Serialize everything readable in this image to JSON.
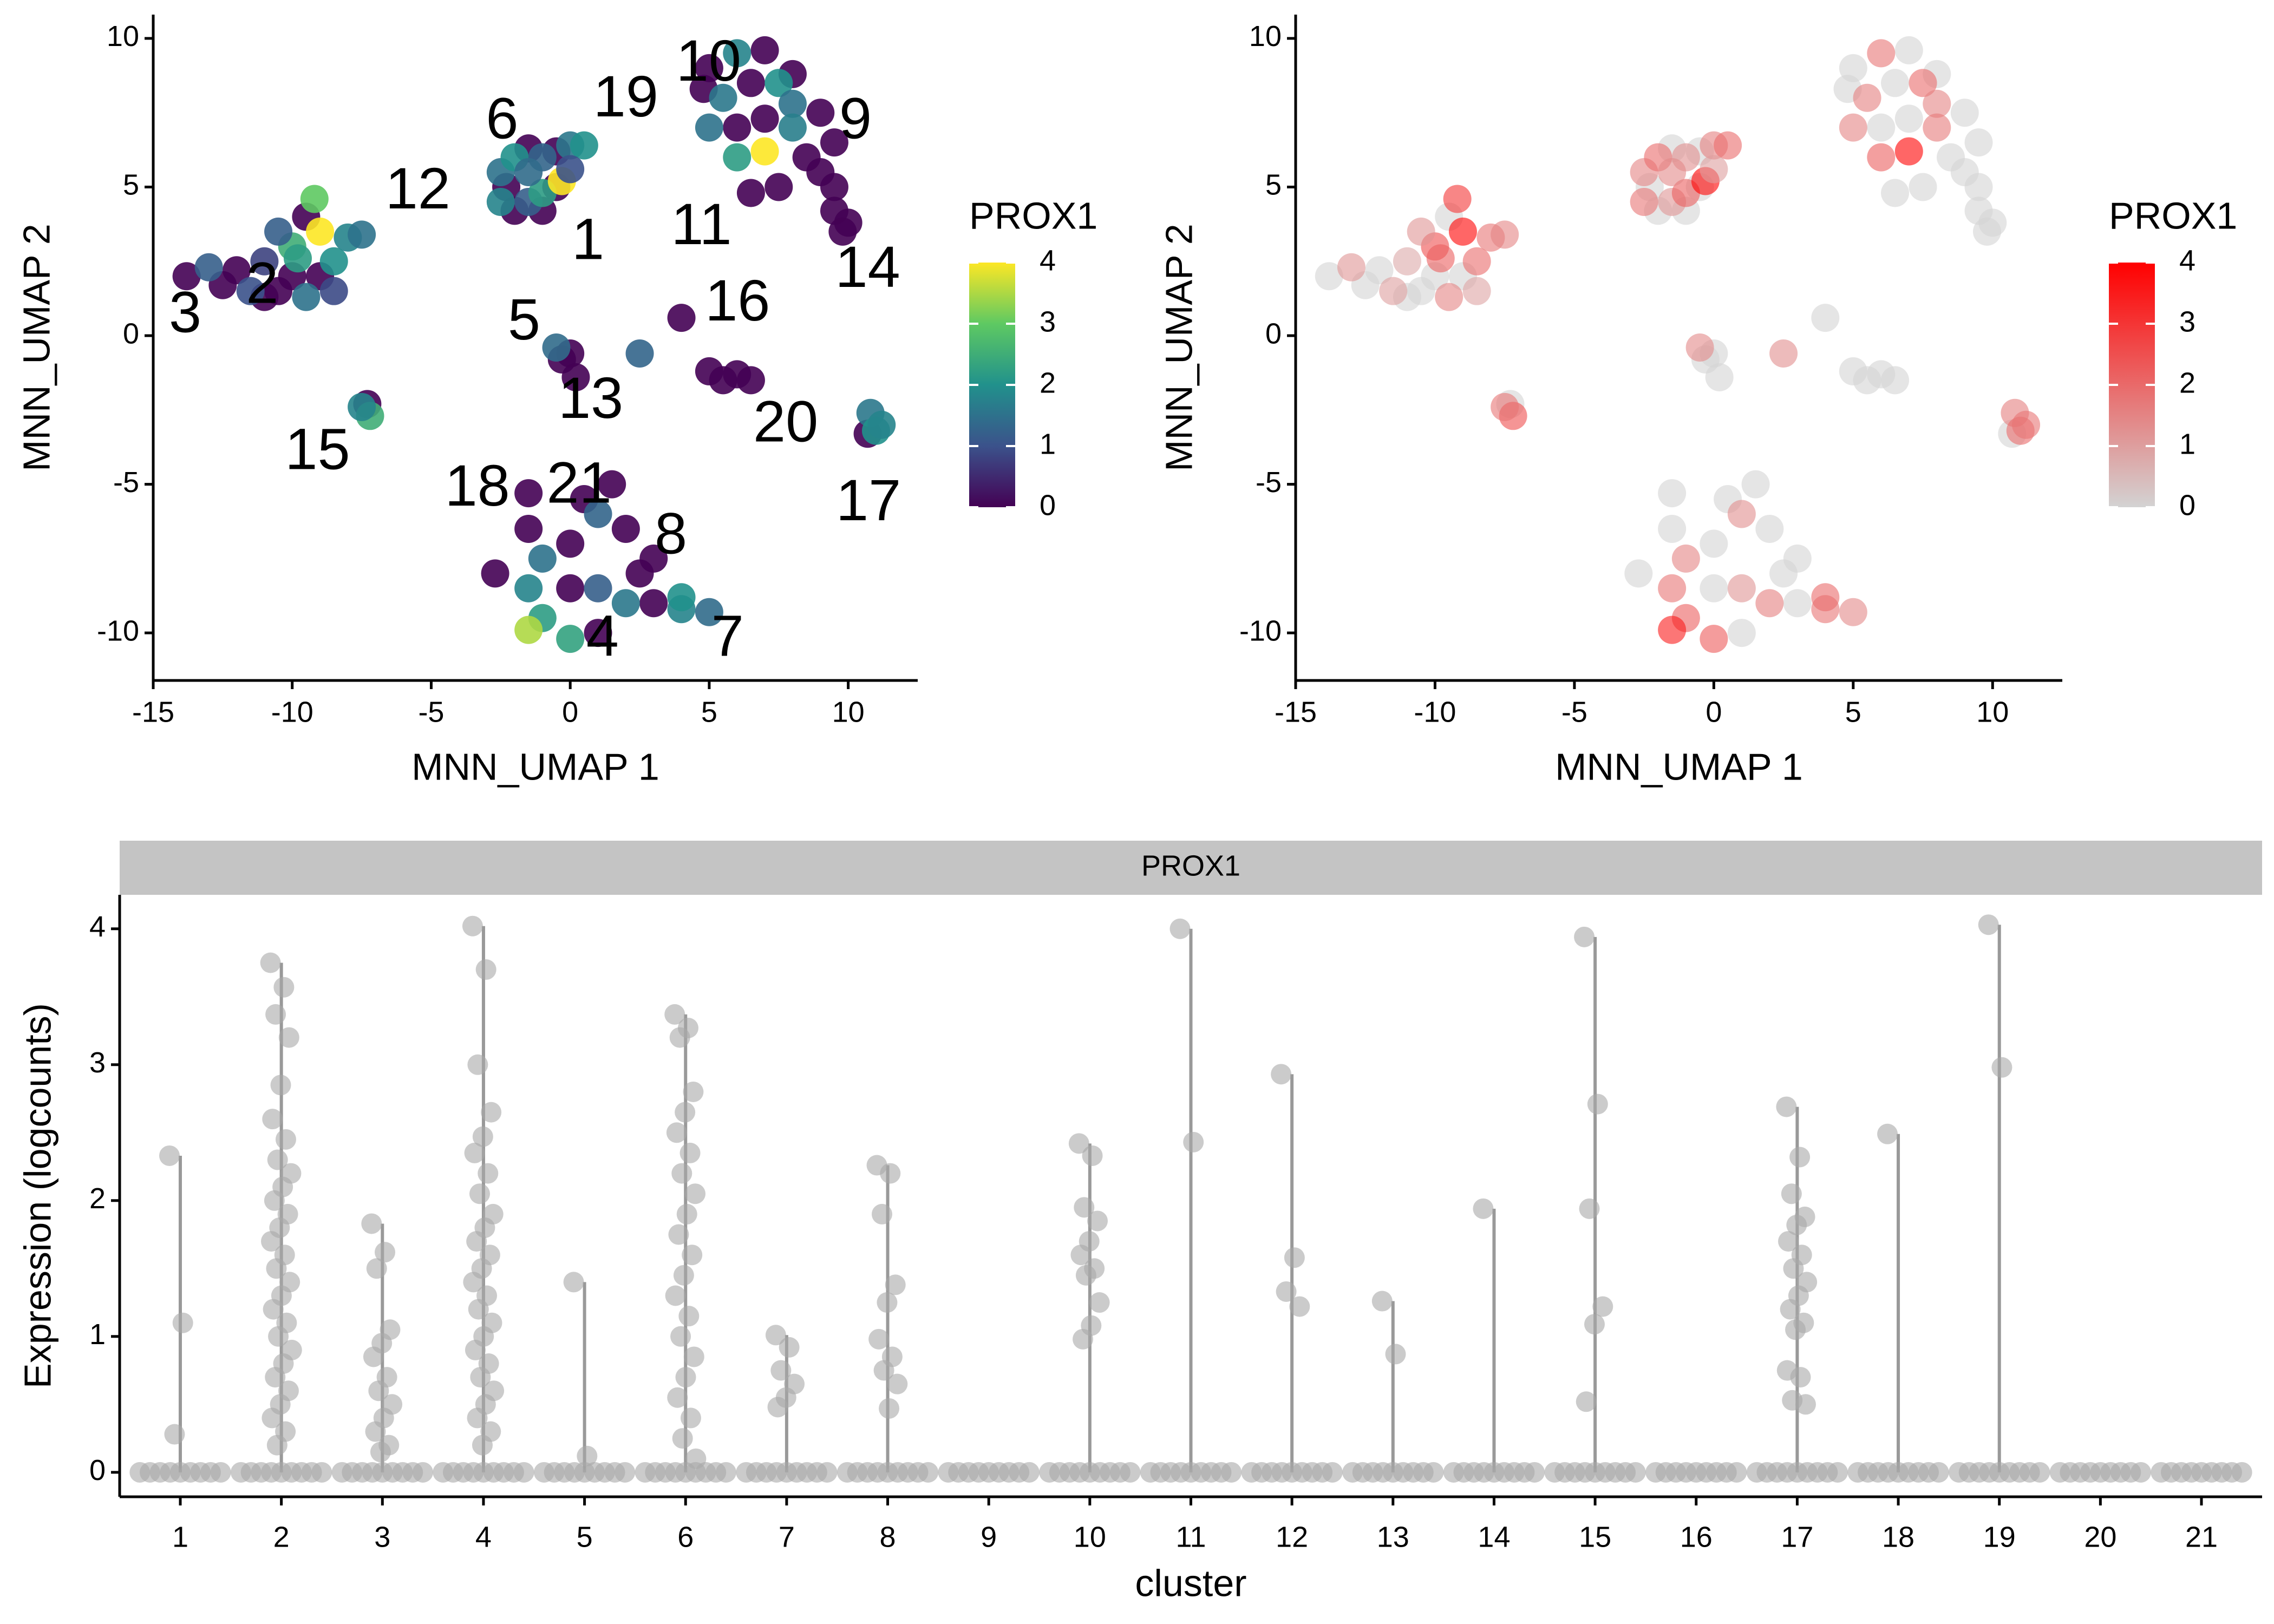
{
  "chart_data": [
    {
      "type": "scatter",
      "x_label": "MNN_UMAP 1",
      "y_label": "MNN_UMAP 2",
      "xlim": [
        -15,
        12.5
      ],
      "ylim": [
        -11.6,
        10.8
      ],
      "xticks": [
        -15,
        -10,
        -5,
        0,
        5,
        10
      ],
      "yticks": [
        -10,
        -5,
        0,
        5,
        10
      ],
      "x": [
        -13.8,
        -13,
        -12,
        -11,
        -12.5,
        -11.5,
        -10.5,
        -10,
        -9.5,
        -9,
        -8.5,
        -10,
        -9.5,
        -9,
        -8,
        -7.5,
        -10.5,
        -9.2,
        -11,
        -8.5,
        -9.8,
        -7.3,
        -7.2,
        -7.5,
        -2.5,
        -2,
        -1.5,
        -1,
        -0.5,
        0,
        0.5,
        -2.5,
        -2,
        -1.5,
        -1,
        -0.5,
        -1.5,
        -2.3,
        -0.3,
        -1,
        0,
        5,
        6,
        7,
        5.5,
        6.5,
        7.5,
        8,
        9,
        9.5,
        8.5,
        7,
        6,
        5,
        6,
        7,
        8,
        9,
        7.5,
        6.5,
        9.5,
        4.8,
        8,
        9.5,
        10,
        9.8,
        -0.5,
        0,
        -0.3,
        0.2,
        2.5,
        4,
        5,
        5.5,
        6,
        6.5,
        10.8,
        11,
        11.2,
        10.7,
        -2.7,
        -1.5,
        -1.5,
        -1,
        0,
        1,
        1.5,
        2,
        3,
        -1.5,
        -1,
        0,
        0,
        1,
        2,
        3,
        4,
        5,
        1,
        -1.5,
        0.5,
        2.5,
        4
      ],
      "y": [
        2,
        2.3,
        2.2,
        2.5,
        1.7,
        1.5,
        1.5,
        2,
        1.3,
        2,
        2.5,
        3,
        4,
        3.5,
        3.3,
        3.4,
        3.5,
        4.6,
        1.3,
        1.5,
        2.6,
        -2.3,
        -2.7,
        -2.4,
        5.5,
        6,
        6.3,
        6,
        6.2,
        6.4,
        6.4,
        4.5,
        4.2,
        4.5,
        4.8,
        5,
        5.5,
        5,
        5.2,
        4.2,
        5.6,
        9,
        9.5,
        9.6,
        8,
        8.5,
        8.5,
        7.8,
        7.5,
        6.5,
        6,
        6.2,
        6,
        7,
        7,
        7.3,
        7,
        5.5,
        5,
        4.8,
        5,
        8.3,
        8.8,
        4.2,
        3.8,
        3.5,
        -0.4,
        -0.6,
        -0.8,
        -1.4,
        -0.6,
        0.6,
        -1.2,
        -1.5,
        -1.3,
        -1.5,
        -2.6,
        -3.2,
        -3,
        -3.3,
        -8,
        -5.3,
        -6.5,
        -7.5,
        -7,
        -6,
        -5,
        -6.5,
        -7.5,
        -8.5,
        -9.5,
        -10.2,
        -8.5,
        -8.5,
        -9,
        -9,
        -9.2,
        -9.3,
        -10,
        -9.9,
        -5.5,
        -8,
        -8.8
      ],
      "color_values": [
        0,
        1.2,
        0,
        0.8,
        0,
        1,
        0,
        0,
        1.5,
        0,
        2,
        2.5,
        0,
        4,
        1.8,
        1.5,
        1.2,
        3,
        0,
        0.9,
        2.2,
        0,
        2.5,
        1.8,
        1.5,
        2,
        0,
        1.3,
        0,
        1.6,
        2,
        1.8,
        0,
        1.2,
        2.2,
        0,
        1.4,
        0,
        4,
        0,
        1,
        0,
        1.8,
        0,
        1.6,
        0,
        2,
        1.5,
        0,
        0,
        0,
        4,
        2.2,
        1.5,
        0,
        0,
        1.7,
        0,
        0,
        0,
        0,
        0,
        0,
        0,
        0,
        0,
        1.4,
        0,
        0,
        0,
        1.3,
        0,
        0,
        0,
        0,
        0,
        1.6,
        2,
        1.8,
        0,
        0,
        0,
        0,
        1.5,
        0,
        1.3,
        0,
        0,
        0,
        1.8,
        2.2,
        2.3,
        0,
        1.2,
        1.6,
        0,
        1.8,
        1.4,
        0,
        3.5,
        0,
        0,
        2
      ],
      "color_title": "PROX1",
      "color_lim": [
        0,
        4
      ],
      "color_ticks": [
        0,
        1,
        2,
        3,
        4
      ],
      "palette": [
        "#440154",
        "#3b528b",
        "#21918c",
        "#5ec962",
        "#fde725"
      ],
      "point_alpha": 0.9,
      "labels": [
        {
          "text": "10",
          "x": 4.98,
          "y": 9.1
        },
        {
          "text": "19",
          "x": 2.0,
          "y": 7.9
        },
        {
          "text": "9",
          "x": 10.26,
          "y": 7.16
        },
        {
          "text": "6",
          "x": -2.45,
          "y": 7.16
        },
        {
          "text": "12",
          "x": -5.48,
          "y": 4.8
        },
        {
          "text": "11",
          "x": 4.72,
          "y": 3.6
        },
        {
          "text": "1",
          "x": 0.64,
          "y": 3.1
        },
        {
          "text": "14",
          "x": 10.7,
          "y": 2.16
        },
        {
          "text": "2",
          "x": -11.08,
          "y": 1.62
        },
        {
          "text": "16",
          "x": 6.02,
          "y": 1.03
        },
        {
          "text": "3",
          "x": -13.85,
          "y": 0.64
        },
        {
          "text": "5",
          "x": -1.66,
          "y": 0.39
        },
        {
          "text": "13",
          "x": 0.74,
          "y": -2.25
        },
        {
          "text": "20",
          "x": 7.75,
          "y": -3.04
        },
        {
          "text": "15",
          "x": -9.09,
          "y": -3.97
        },
        {
          "text": "18",
          "x": -3.34,
          "y": -5.2
        },
        {
          "text": "21",
          "x": 0.32,
          "y": -5.1
        },
        {
          "text": "17",
          "x": 10.73,
          "y": -5.69
        },
        {
          "text": "8",
          "x": 3.62,
          "y": -6.81
        },
        {
          "text": "4",
          "x": 1.16,
          "y": -10.25
        },
        {
          "text": "7",
          "x": 5.66,
          "y": -10.25
        }
      ]
    },
    {
      "type": "scatter",
      "x_label": "MNN_UMAP 1",
      "y_label": "MNN_UMAP 2",
      "xlim": [
        -15,
        12.5
      ],
      "ylim": [
        -11.6,
        10.8
      ],
      "xticks": [
        -15,
        -10,
        -5,
        0,
        5,
        10
      ],
      "yticks": [
        -10,
        -5,
        0,
        5,
        10
      ],
      "x": [
        -13.8,
        -13,
        -12,
        -11,
        -12.5,
        -11.5,
        -10.5,
        -10,
        -9.5,
        -9,
        -8.5,
        -10,
        -9.5,
        -9,
        -8,
        -7.5,
        -10.5,
        -9.2,
        -11,
        -8.5,
        -9.8,
        -7.3,
        -7.2,
        -7.5,
        -2.5,
        -2,
        -1.5,
        -1,
        -0.5,
        0,
        0.5,
        -2.5,
        -2,
        -1.5,
        -1,
        -0.5,
        -1.5,
        -2.3,
        -0.3,
        -1,
        0,
        5,
        6,
        7,
        5.5,
        6.5,
        7.5,
        8,
        9,
        9.5,
        8.5,
        7,
        6,
        5,
        6,
        7,
        8,
        9,
        7.5,
        6.5,
        9.5,
        4.8,
        8,
        9.5,
        10,
        9.8,
        -0.5,
        0,
        -0.3,
        0.2,
        2.5,
        4,
        5,
        5.5,
        6,
        6.5,
        10.8,
        11,
        11.2,
        10.7,
        -2.7,
        -1.5,
        -1.5,
        -1,
        0,
        1,
        1.5,
        2,
        3,
        -1.5,
        -1,
        0,
        0,
        1,
        2,
        3,
        4,
        5,
        1,
        -1.5,
        0.5,
        2.5,
        4
      ],
      "y": [
        2,
        2.3,
        2.2,
        2.5,
        1.7,
        1.5,
        1.5,
        2,
        1.3,
        2,
        2.5,
        3,
        4,
        3.5,
        3.3,
        3.4,
        3.5,
        4.6,
        1.3,
        1.5,
        2.6,
        -2.3,
        -2.7,
        -2.4,
        5.5,
        6,
        6.3,
        6,
        6.2,
        6.4,
        6.4,
        4.5,
        4.2,
        4.5,
        4.8,
        5,
        5.5,
        5,
        5.2,
        4.2,
        5.6,
        9,
        9.5,
        9.6,
        8,
        8.5,
        8.5,
        7.8,
        7.5,
        6.5,
        6,
        6.2,
        6,
        7,
        7,
        7.3,
        7,
        5.5,
        5,
        4.8,
        5,
        8.3,
        8.8,
        4.2,
        3.8,
        3.5,
        -0.4,
        -0.6,
        -0.8,
        -1.4,
        -0.6,
        0.6,
        -1.2,
        -1.5,
        -1.3,
        -1.5,
        -2.6,
        -3.2,
        -3,
        -3.3,
        -8,
        -5.3,
        -6.5,
        -7.5,
        -7,
        -6,
        -5,
        -6.5,
        -7.5,
        -8.5,
        -9.5,
        -10.2,
        -8.5,
        -8.5,
        -9,
        -9,
        -9.2,
        -9.3,
        -10,
        -9.9,
        -5.5,
        -8,
        -8.8
      ],
      "color_values": [
        0,
        1.2,
        0,
        0.8,
        0,
        1,
        0,
        0,
        1.5,
        0,
        2,
        2.5,
        0,
        4,
        1.8,
        1.5,
        1.2,
        3,
        0,
        0.9,
        2.2,
        0,
        2.5,
        1.8,
        1.5,
        2,
        0,
        1.3,
        0,
        1.6,
        2,
        1.8,
        0,
        1.2,
        2.2,
        0,
        1.4,
        0,
        4,
        0,
        1,
        0,
        1.8,
        0,
        1.6,
        0,
        2,
        1.5,
        0,
        0,
        0,
        4,
        2.2,
        1.5,
        0,
        0,
        1.7,
        0,
        0,
        0,
        0,
        0,
        0,
        0,
        0,
        0,
        1.4,
        0,
        0,
        0,
        1.3,
        0,
        0,
        0,
        0,
        0,
        1.6,
        2,
        1.8,
        0,
        0,
        0,
        0,
        1.5,
        0,
        1.3,
        0,
        0,
        0,
        1.8,
        2.2,
        2.3,
        0,
        1.2,
        1.6,
        0,
        1.8,
        1.4,
        0,
        3.5,
        0,
        0,
        2
      ],
      "color_title": "PROX1",
      "color_lim": [
        0,
        4
      ],
      "color_ticks": [
        0,
        1,
        2,
        3,
        4
      ],
      "palette": [
        "#d3d3d3",
        "#ff0000"
      ],
      "point_alpha": 0.6
    },
    {
      "type": "violin",
      "strip": "PROX1",
      "x_label": "cluster",
      "y_label": "Expression (logcounts)",
      "ylim": [
        -0.18,
        4.25
      ],
      "yticks": [
        0,
        1,
        2,
        3,
        4
      ],
      "categories": [
        "1",
        "2",
        "3",
        "4",
        "5",
        "6",
        "7",
        "8",
        "9",
        "10",
        "11",
        "12",
        "13",
        "14",
        "15",
        "16",
        "17",
        "18",
        "19",
        "20",
        "21"
      ],
      "values": [
        [
          2.33,
          1.1,
          0.28,
          0,
          0,
          0,
          0,
          0,
          0,
          0,
          0,
          0
        ],
        [
          3.75,
          3.57,
          3.37,
          3.2,
          2.85,
          2.6,
          2.45,
          2.3,
          2.2,
          2.1,
          2.0,
          1.9,
          1.8,
          1.7,
          1.6,
          1.5,
          1.4,
          1.3,
          1.2,
          1.1,
          1.0,
          0.9,
          0.8,
          0.7,
          0.6,
          0.5,
          0.4,
          0.3,
          0.2,
          0,
          0,
          0,
          0,
          0,
          0,
          0,
          0,
          0
        ],
        [
          1.83,
          1.62,
          1.5,
          1.05,
          0.95,
          0.85,
          0.7,
          0.6,
          0.5,
          0.4,
          0.3,
          0.2,
          0.15,
          0,
          0,
          0,
          0,
          0,
          0,
          0,
          0,
          0
        ],
        [
          4.02,
          3.7,
          3.0,
          2.65,
          2.47,
          2.35,
          2.2,
          2.05,
          1.9,
          1.8,
          1.7,
          1.6,
          1.5,
          1.4,
          1.3,
          1.2,
          1.1,
          1.0,
          0.9,
          0.8,
          0.7,
          0.6,
          0.5,
          0.4,
          0.3,
          0.2,
          0,
          0,
          0,
          0,
          0,
          0,
          0,
          0,
          0
        ],
        [
          1.4,
          0.12,
          0,
          0,
          0,
          0,
          0,
          0,
          0,
          0,
          0
        ],
        [
          3.37,
          3.27,
          3.2,
          2.8,
          2.65,
          2.5,
          2.35,
          2.2,
          2.05,
          1.9,
          1.75,
          1.6,
          1.45,
          1.3,
          1.15,
          1.0,
          0.85,
          0.7,
          0.55,
          0.4,
          0.25,
          0.1,
          0,
          0,
          0,
          0,
          0,
          0,
          0,
          0,
          0
        ],
        [
          1.01,
          0.92,
          0.75,
          0.65,
          0.55,
          0.48,
          0,
          0,
          0,
          0,
          0,
          0,
          0,
          0,
          0
        ],
        [
          2.26,
          2.2,
          1.9,
          1.38,
          1.25,
          0.98,
          0.85,
          0.75,
          0.65,
          0.47,
          0,
          0,
          0,
          0,
          0,
          0,
          0,
          0,
          0
        ],
        [
          0,
          0,
          0,
          0,
          0,
          0,
          0,
          0,
          0
        ],
        [
          2.42,
          2.33,
          1.95,
          1.85,
          1.7,
          1.6,
          1.5,
          1.45,
          1.25,
          1.08,
          0.98,
          0,
          0,
          0,
          0,
          0,
          0,
          0,
          0,
          0
        ],
        [
          4.0,
          2.43,
          0,
          0,
          0,
          0,
          0,
          0,
          0,
          0,
          0
        ],
        [
          2.93,
          1.58,
          1.33,
          1.22,
          0,
          0,
          0,
          0,
          0,
          0,
          0,
          0,
          0
        ],
        [
          1.26,
          0.87,
          0,
          0,
          0,
          0,
          0,
          0,
          0,
          0,
          0
        ],
        [
          1.94,
          0,
          0,
          0,
          0,
          0,
          0,
          0,
          0,
          0
        ],
        [
          3.94,
          2.71,
          1.94,
          1.22,
          1.09,
          0.52,
          0,
          0,
          0,
          0,
          0,
          0,
          0,
          0,
          0
        ],
        [
          0,
          0,
          0,
          0,
          0,
          0,
          0,
          0,
          0
        ],
        [
          2.69,
          2.32,
          2.05,
          1.88,
          1.82,
          1.7,
          1.6,
          1.5,
          1.4,
          1.3,
          1.2,
          1.1,
          1.05,
          0.75,
          0.7,
          0.53,
          0.5,
          0,
          0,
          0,
          0,
          0,
          0,
          0,
          0,
          0
        ],
        [
          2.49,
          0,
          0,
          0,
          0,
          0,
          0,
          0,
          0,
          0
        ],
        [
          4.03,
          2.98,
          0,
          0,
          0,
          0,
          0,
          0,
          0,
          0,
          0
        ],
        [
          0,
          0,
          0,
          0,
          0,
          0,
          0,
          0,
          0
        ],
        [
          0,
          0,
          0,
          0,
          0,
          0,
          0,
          0,
          0
        ]
      ],
      "color": "#a9a9a9",
      "line_color": "#999999"
    }
  ]
}
